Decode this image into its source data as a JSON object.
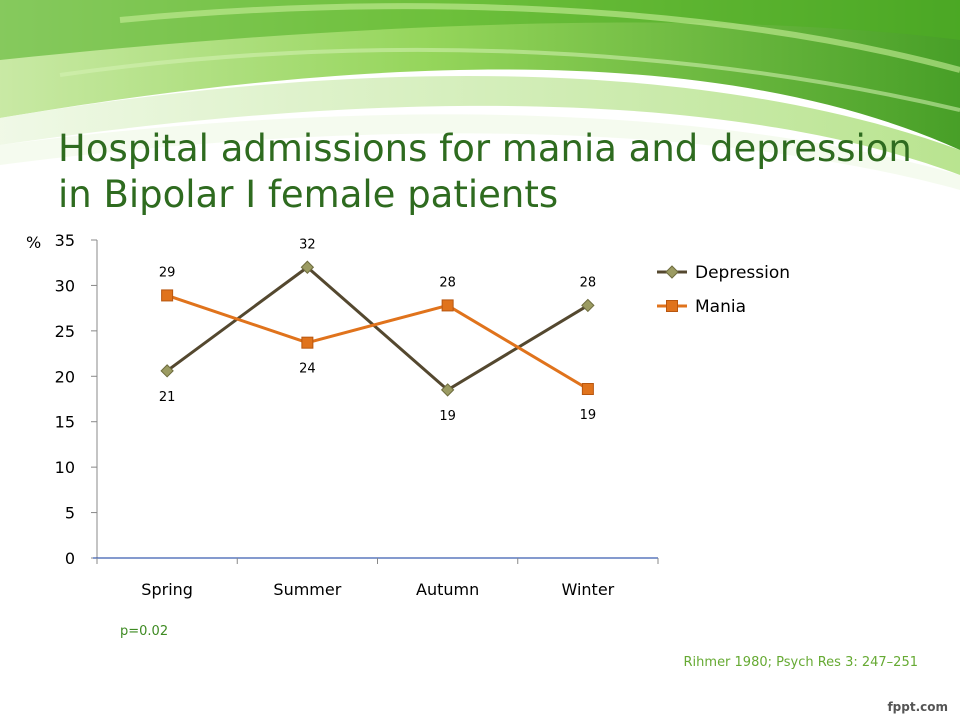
{
  "slide": {
    "title": "Hospital admissions for mania and depression in Bipolar I female patients",
    "p_value": "p=0.02",
    "citation": "Rihmer 1980; Psych Res 3: 247–251",
    "watermark": "fppt.com"
  },
  "colors": {
    "title": "#2e6b1f",
    "banner_light": "#d9efc0",
    "banner_mid": "#8fd352",
    "banner_dark": "#3e9a1c"
  },
  "chart_data": {
    "type": "line",
    "categories": [
      "Spring",
      "Summer",
      "Autumn",
      "Winter"
    ],
    "ylabel": "%",
    "ylim": [
      0,
      35
    ],
    "yticks": [
      0,
      5,
      10,
      15,
      20,
      25,
      30,
      35
    ],
    "grid": false,
    "legend": "right",
    "series": [
      {
        "name": "Depression",
        "values": [
          20.6,
          32,
          18.5,
          27.8
        ],
        "labels": [
          "21",
          "32",
          "19",
          "28"
        ],
        "color": "#54482f",
        "marker": "diamond",
        "marker_color": "#9b9b62",
        "label_position": [
          "below",
          "above",
          "below",
          "above"
        ]
      },
      {
        "name": "Mania",
        "values": [
          28.9,
          23.7,
          27.8,
          18.6
        ],
        "labels": [
          "29",
          "24",
          "28",
          "19"
        ],
        "color": "#e0731c",
        "marker": "square",
        "marker_color": "#e0731c",
        "label_position": [
          "above",
          "below",
          "above",
          "below"
        ]
      }
    ]
  }
}
